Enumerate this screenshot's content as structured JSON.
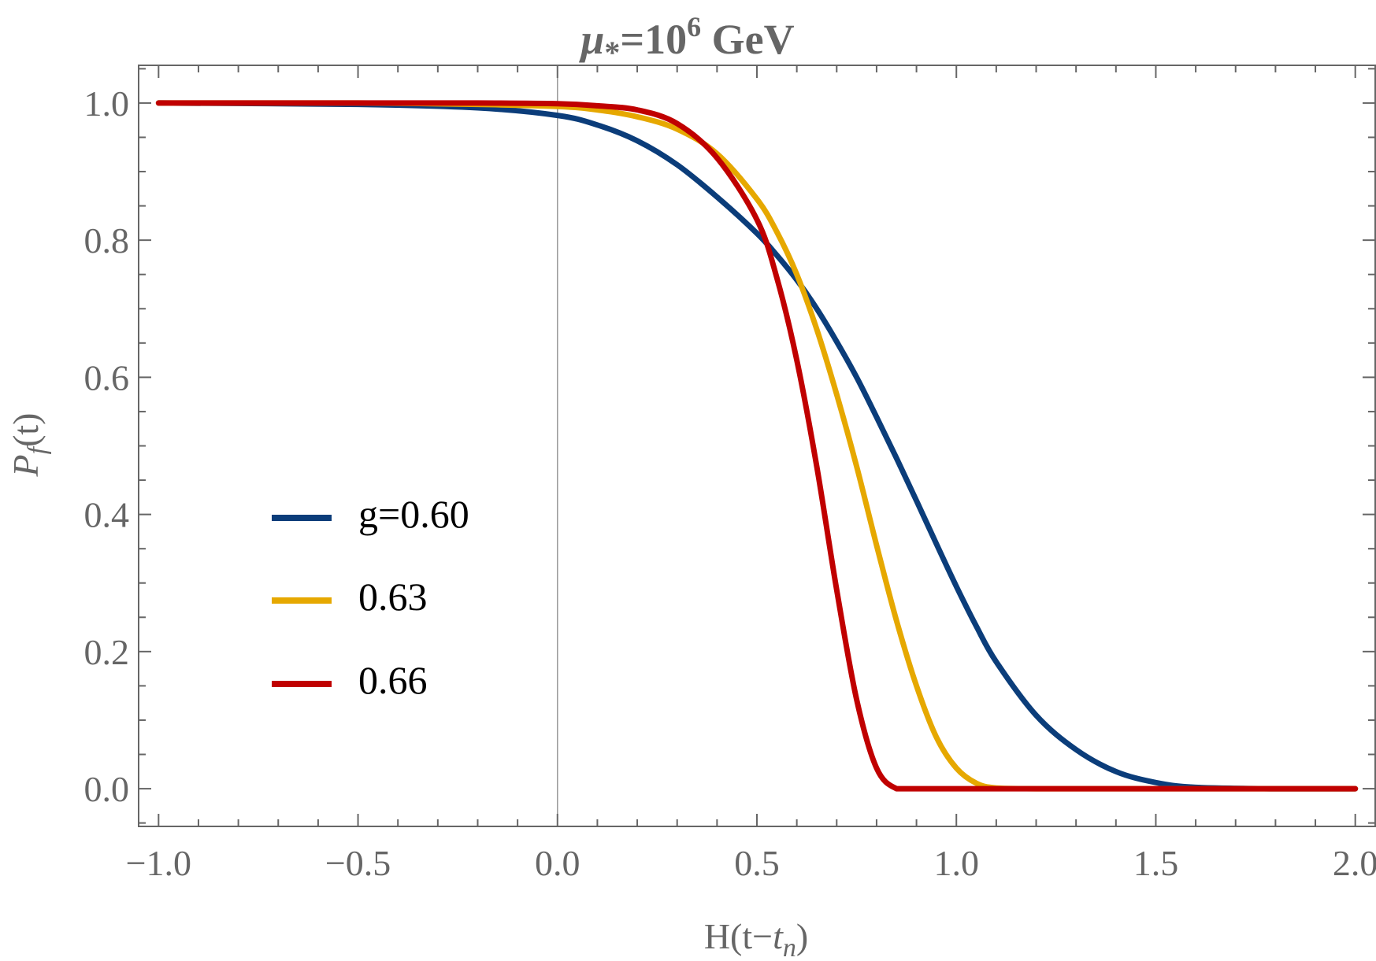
{
  "chart_data": {
    "type": "line",
    "title": "μ*=10^6 GeV",
    "title_parts": {
      "symbol": "μ",
      "subscript": "*",
      "equals": "=10",
      "exponent": "6",
      "unit": " GeV"
    },
    "xlabel": "H(t−t_n)",
    "xlabel_parts": {
      "prefix": "H(t−",
      "italic": "t",
      "subscript": "n",
      "suffix": ")"
    },
    "ylabel": "P_f(t)",
    "ylabel_parts": {
      "italic": "P",
      "subscript": "f",
      "suffix": "(t)"
    },
    "xlim": [
      -1.05,
      2.05
    ],
    "ylim": [
      -0.055,
      1.055
    ],
    "xticks": [
      -1.0,
      -0.5,
      0.0,
      0.5,
      1.0,
      1.5,
      2.0
    ],
    "xtick_labels": [
      "−1.0",
      "−0.5",
      "0.0",
      "0.5",
      "1.0",
      "1.5",
      "2.0"
    ],
    "yticks": [
      0.0,
      0.2,
      0.4,
      0.6,
      0.8,
      1.0
    ],
    "ytick_labels": [
      "0.0",
      "0.2",
      "0.4",
      "0.6",
      "0.8",
      "1.0"
    ],
    "grid": false,
    "legend_position": "left-middle",
    "x": [
      -1.0,
      -0.5,
      -0.2,
      0.0,
      0.1,
      0.2,
      0.3,
      0.4,
      0.5,
      0.55,
      0.6,
      0.65,
      0.7,
      0.75,
      0.8,
      0.85,
      0.9,
      0.95,
      1.0,
      1.05,
      1.1,
      1.2,
      1.3,
      1.4,
      1.5,
      1.6,
      1.8,
      2.0
    ],
    "series": [
      {
        "name": "g=0.60",
        "color": "#0b3d7a",
        "values": [
          1.0,
          0.998,
          0.993,
          0.982,
          0.968,
          0.945,
          0.91,
          0.863,
          0.81,
          0.778,
          0.742,
          0.7,
          0.652,
          0.6,
          0.542,
          0.482,
          0.42,
          0.357,
          0.295,
          0.237,
          0.185,
          0.107,
          0.057,
          0.025,
          0.009,
          0.002,
          0.0,
          0.0
        ]
      },
      {
        "name": "0.63",
        "color": "#e6a800",
        "values": [
          1.0,
          1.0,
          0.998,
          0.995,
          0.99,
          0.98,
          0.962,
          0.926,
          0.86,
          0.812,
          0.75,
          0.67,
          0.575,
          0.47,
          0.355,
          0.245,
          0.15,
          0.075,
          0.03,
          0.008,
          0.001,
          0.0,
          0.0,
          0.0,
          0.0,
          0.0,
          0.0,
          0.0
        ]
      },
      {
        "name": "0.66",
        "color": "#c00000",
        "values": [
          1.0,
          1.0,
          1.0,
          0.999,
          0.996,
          0.99,
          0.97,
          0.92,
          0.83,
          0.745,
          0.625,
          0.47,
          0.29,
          0.13,
          0.03,
          0.0,
          0.0,
          0.0,
          0.0,
          0.0,
          0.0,
          0.0,
          0.0,
          0.0,
          0.0,
          0.0,
          0.0,
          0.0
        ]
      }
    ]
  }
}
